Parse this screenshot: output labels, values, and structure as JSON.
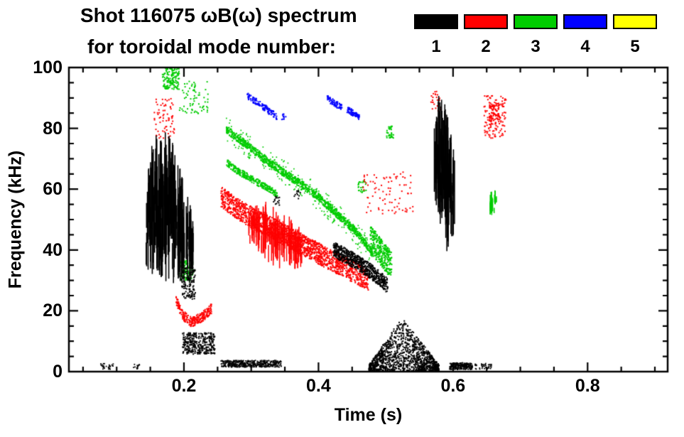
{
  "title": {
    "line1": "Shot 116075 ωB(ω) spectrum",
    "line2": "for toroidal mode number:"
  },
  "legend": {
    "position": "top-right",
    "entries": [
      {
        "label": "1",
        "color": "#000000"
      },
      {
        "label": "2",
        "color": "#ff0000"
      },
      {
        "label": "3",
        "color": "#00cc00"
      },
      {
        "label": "4",
        "color": "#0000ff"
      },
      {
        "label": "5",
        "color": "#ffff00"
      }
    ]
  },
  "axes": {
    "x": {
      "label": "Time (s)",
      "min": 0.029,
      "max": 0.919,
      "major_ticks": [
        0.2,
        0.4,
        0.6,
        0.8
      ],
      "tick_labels": [
        "0.2",
        "0.4",
        "0.6",
        "0.8"
      ],
      "minor_step": 0.05
    },
    "y": {
      "label": "Frequency (kHz)",
      "min": 0,
      "max": 100,
      "major_ticks": [
        0,
        20,
        40,
        60,
        80,
        100
      ],
      "tick_labels": [
        "0",
        "20",
        "40",
        "60",
        "80",
        "100"
      ],
      "minor_step": 5
    }
  },
  "chart_data": {
    "type": "scatter",
    "title": "Shot 116075 ωB(ω) spectrum for toroidal mode number: 1 2 3 4 5",
    "xlabel": "Time (s)",
    "ylabel": "Frequency (kHz)",
    "xlim": [
      0.029,
      0.919
    ],
    "ylim": [
      0,
      100
    ],
    "grid": false,
    "legend_position": "top-right",
    "series": [
      {
        "name": "1",
        "color": "#000000",
        "elements": [
          {
            "type": "vstripes",
            "t": [
              0.143,
              0.214
            ],
            "ftop": [
              [
                0.143,
                62
              ],
              [
                0.152,
                76
              ],
              [
                0.16,
                80
              ],
              [
                0.175,
                79
              ],
              [
                0.185,
                74
              ],
              [
                0.197,
                68
              ],
              [
                0.207,
                58
              ],
              [
                0.214,
                48
              ]
            ],
            "fbot": [
              [
                0.143,
                34
              ],
              [
                0.16,
                30
              ],
              [
                0.18,
                29
              ],
              [
                0.2,
                27
              ],
              [
                0.214,
                30
              ]
            ],
            "n": 180,
            "w": 1.6
          },
          {
            "type": "blob",
            "t": [
              0.195,
              0.216
            ],
            "f": [
              24,
              35
            ],
            "n": 130,
            "size": 2
          },
          {
            "type": "blob",
            "t": [
              0.197,
              0.245
            ],
            "f": [
              6,
              13
            ],
            "n": 330,
            "size": 2
          },
          {
            "type": "band",
            "pts": [
              [
                0.254,
                2.8
              ],
              [
                0.344,
                2.8
              ]
            ],
            "thick": 2.2,
            "n": 430,
            "size": 1.8
          },
          {
            "type": "band",
            "pts": [
              [
                0.594,
                2.0
              ],
              [
                0.628,
                2.0
              ]
            ],
            "thick": 2.2,
            "n": 220,
            "size": 1.8
          },
          {
            "type": "blob",
            "t": [
              0.632,
              0.657
            ],
            "f": [
              1,
              3
            ],
            "n": 40,
            "size": 1.8
          },
          {
            "type": "band",
            "pts": [
              [
                0.421,
                40.5
              ],
              [
                0.45,
                37
              ],
              [
                0.475,
                33.5
              ],
              [
                0.502,
                28.5
              ]
            ],
            "thick": 5,
            "n": 650,
            "size": 2
          },
          {
            "type": "tri",
            "t": [
              0.474,
              0.578
            ],
            "apex": 0.523,
            "fbase": 0.5,
            "fedge": 2.5,
            "ftop": 18,
            "n": 1200,
            "size": 2
          },
          {
            "type": "vstripes",
            "t": [
              0.571,
              0.602
            ],
            "ftop": [
              [
                0.571,
                84
              ],
              [
                0.578,
                91
              ],
              [
                0.588,
                88
              ],
              [
                0.595,
                80
              ],
              [
                0.602,
                70
              ]
            ],
            "fbot": [
              [
                0.571,
                58
              ],
              [
                0.58,
                46
              ],
              [
                0.59,
                38
              ],
              [
                0.602,
                46
              ]
            ],
            "n": 95,
            "w": 1.6
          },
          {
            "type": "blob",
            "t": [
              0.075,
              0.095
            ],
            "f": [
              1,
              3
            ],
            "n": 28,
            "size": 1.8
          },
          {
            "type": "blob",
            "t": [
              0.124,
              0.133
            ],
            "f": [
              1,
              3
            ],
            "n": 14,
            "size": 1.8
          },
          {
            "type": "blob",
            "t": [
              0.332,
              0.341
            ],
            "f": [
              55,
              58
            ],
            "n": 14,
            "size": 2
          },
          {
            "type": "blob",
            "t": [
              0.363,
              0.372
            ],
            "f": [
              57,
              60
            ],
            "n": 10,
            "size": 2
          }
        ]
      },
      {
        "name": "2",
        "color": "#ff0000",
        "elements": [
          {
            "type": "blob",
            "t": [
              0.155,
              0.185
            ],
            "f": [
              77,
              90
            ],
            "n": 70,
            "size": 2
          },
          {
            "type": "band",
            "pts": [
              [
                0.187,
                24
              ],
              [
                0.196,
                19
              ],
              [
                0.21,
                16.5
              ],
              [
                0.225,
                18
              ],
              [
                0.24,
                21
              ]
            ],
            "thick": 3.2,
            "n": 260,
            "size": 2
          },
          {
            "type": "band",
            "pts": [
              [
                0.254,
                58
              ],
              [
                0.275,
                54
              ],
              [
                0.3,
                51
              ],
              [
                0.325,
                48
              ],
              [
                0.35,
                45
              ],
              [
                0.375,
                42
              ],
              [
                0.4,
                39
              ],
              [
                0.425,
                36
              ],
              [
                0.45,
                33
              ],
              [
                0.473,
                30.5
              ]
            ],
            "thick": 7,
            "n": 1700,
            "size": 2
          },
          {
            "type": "vstripes",
            "t": [
              0.295,
              0.375
            ],
            "ftop": [
              [
                0.295,
                55
              ],
              [
                0.32,
                56
              ],
              [
                0.345,
                53
              ],
              [
                0.375,
                48
              ]
            ],
            "fbot": [
              [
                0.295,
                42
              ],
              [
                0.32,
                36
              ],
              [
                0.35,
                33
              ],
              [
                0.375,
                34
              ]
            ],
            "n": 120,
            "w": 1.5
          },
          {
            "type": "blob",
            "t": [
              0.465,
              0.54
            ],
            "f": [
              52,
              66
            ],
            "n": 85,
            "size": 2
          },
          {
            "type": "blob",
            "t": [
              0.566,
              0.58
            ],
            "f": [
              86,
              93
            ],
            "n": 24,
            "size": 2
          },
          {
            "type": "blob",
            "t": [
              0.645,
              0.678
            ],
            "f": [
              77,
              91
            ],
            "n": 130,
            "size": 2
          },
          {
            "type": "blob",
            "t": [
              0.653,
              0.668
            ],
            "f": [
              82,
              88
            ],
            "n": 60,
            "size": 2.2
          }
        ]
      },
      {
        "name": "3",
        "color": "#00cc00",
        "elements": [
          {
            "type": "blob",
            "t": [
              0.167,
              0.192
            ],
            "f": [
              93,
              100
            ],
            "n": 140,
            "size": 2
          },
          {
            "type": "blob",
            "t": [
              0.192,
              0.235
            ],
            "f": [
              85,
              96
            ],
            "n": 70,
            "size": 2
          },
          {
            "type": "blob",
            "t": [
              0.193,
              0.213
            ],
            "f": [
              30,
              37
            ],
            "n": 90,
            "size": 2
          },
          {
            "type": "band",
            "pts": [
              [
                0.262,
                80
              ],
              [
                0.282,
                76.5
              ],
              [
                0.302,
                73
              ],
              [
                0.322,
                69.5
              ],
              [
                0.342,
                66.5
              ],
              [
                0.362,
                63.5
              ],
              [
                0.382,
                60.5
              ],
              [
                0.402,
                57
              ],
              [
                0.422,
                53
              ],
              [
                0.442,
                49
              ],
              [
                0.458,
                45.5
              ],
              [
                0.47,
                42
              ],
              [
                0.479,
                39
              ]
            ],
            "thick": 2.6,
            "n": 1000,
            "size": 2
          },
          {
            "type": "band",
            "pts": [
              [
                0.262,
                69
              ],
              [
                0.28,
                66
              ],
              [
                0.3,
                63.5
              ],
              [
                0.32,
                61
              ],
              [
                0.338,
                58.5
              ]
            ],
            "thick": 2.2,
            "n": 280,
            "size": 2
          },
          {
            "type": "band",
            "pts": [
              [
                0.262,
                80
              ],
              [
                0.32,
                70
              ],
              [
                0.38,
                61
              ],
              [
                0.44,
                49
              ],
              [
                0.479,
                39
              ]
            ],
            "thick": 8,
            "n": 260,
            "size": 1.7
          },
          {
            "type": "band",
            "pts": [
              [
                0.476,
                44
              ],
              [
                0.49,
                40
              ],
              [
                0.508,
                35
              ]
            ],
            "thick": 9,
            "n": 330,
            "size": 2
          },
          {
            "type": "blob",
            "t": [
              0.5,
              0.512
            ],
            "f": [
              77,
              81
            ],
            "n": 34,
            "size": 2
          },
          {
            "type": "blob",
            "t": [
              0.458,
              0.47
            ],
            "f": [
              59,
              63
            ],
            "n": 26,
            "size": 2
          },
          {
            "type": "vstripes",
            "t": [
              0.654,
              0.665
            ],
            "ftop": [
              [
                0.654,
                59
              ],
              [
                0.665,
                60
              ]
            ],
            "fbot": [
              [
                0.654,
                51
              ],
              [
                0.665,
                52
              ]
            ],
            "n": 18,
            "w": 1.5
          }
        ]
      },
      {
        "name": "4",
        "color": "#0000ff",
        "elements": [
          {
            "type": "band",
            "pts": [
              [
                0.293,
                91
              ],
              [
                0.31,
                88.5
              ],
              [
                0.325,
                86
              ],
              [
                0.337,
                84
              ]
            ],
            "thick": 2.2,
            "n": 130,
            "size": 2
          },
          {
            "type": "band",
            "pts": [
              [
                0.412,
                90
              ],
              [
                0.434,
                87
              ]
            ],
            "thick": 2,
            "n": 70,
            "size": 2
          },
          {
            "type": "band",
            "pts": [
              [
                0.441,
                86.5
              ],
              [
                0.46,
                84
              ]
            ],
            "thick": 2,
            "n": 70,
            "size": 2
          },
          {
            "type": "blob",
            "t": [
              0.344,
              0.351
            ],
            "f": [
              83,
              85
            ],
            "n": 10,
            "size": 2
          }
        ]
      },
      {
        "name": "5",
        "color": "#ffff00",
        "elements": []
      }
    ]
  }
}
